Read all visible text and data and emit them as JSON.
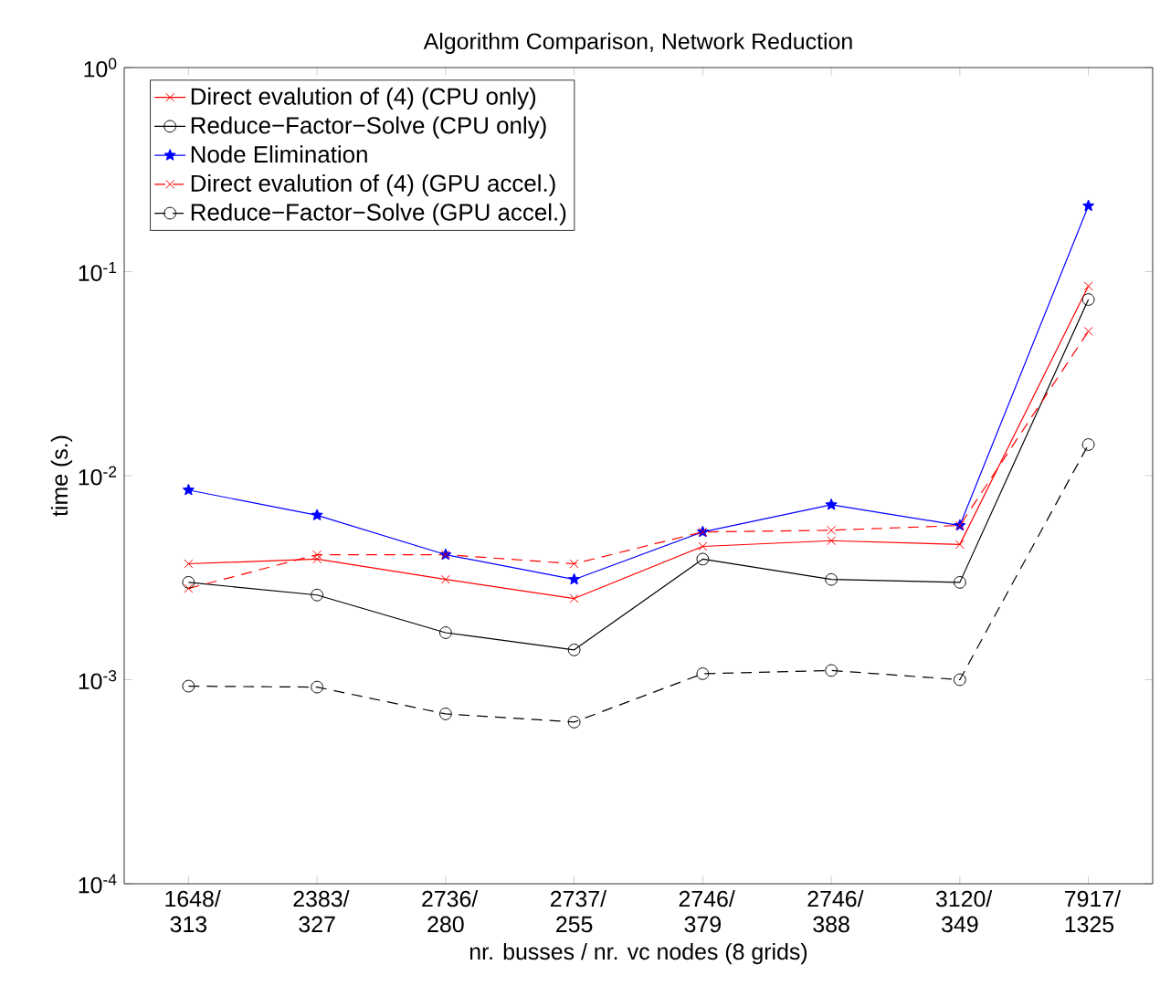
{
  "chart_data": {
    "type": "line",
    "title": "Algorithm Comparison, Network Reduction",
    "xlabel": "nr. busses / nr. vc nodes (8 grids)",
    "ylabel": "time (s.)",
    "categories": [
      "1648/ 313",
      "2383/ 327",
      "2736/ 280",
      "2737/ 255",
      "2746/ 379",
      "2746/ 388",
      "3120/ 349",
      "7917/ 1325"
    ],
    "log": "y",
    "ylim": [
      0.0001,
      1
    ],
    "yticks": [
      {
        "value": 0.0001,
        "label": "10$^{-4}$"
      },
      {
        "value": 0.001,
        "label": "10$^{-3}$"
      },
      {
        "value": 0.01,
        "label": "10$^{-2}$"
      },
      {
        "value": 0.1,
        "label": "10$^{-1}$"
      },
      {
        "value": 1,
        "label": "10$^{0}$"
      }
    ],
    "grid": false,
    "legend": "top left",
    "series": [
      {
        "name": "Direct evalution of (4) (CPU only)",
        "color": "#ff0000",
        "marker": "cross",
        "line_style": "solid",
        "values": [
          0.0037,
          0.0039,
          0.0031,
          0.0025,
          0.0045,
          0.0048,
          0.0046,
          0.085
        ]
      },
      {
        "name": "Reduce−Factor−Solve (CPU only)",
        "color": "#000000",
        "marker": "circle",
        "line_style": "solid",
        "values": [
          0.003,
          0.0026,
          0.0017,
          0.0014,
          0.0039,
          0.0031,
          0.003,
          0.073
        ]
      },
      {
        "name": "Node Elimination",
        "color": "#0000ff",
        "marker": "star",
        "line_style": "solid",
        "values": [
          0.0085,
          0.0064,
          0.0041,
          0.0031,
          0.0053,
          0.0072,
          0.0057,
          0.21
        ]
      },
      {
        "name": "Direct evalution of (4) (GPU accel.)",
        "color": "#ff0000",
        "marker": "cross",
        "line_style": "dashed",
        "values": [
          0.0028,
          0.0041,
          0.0041,
          0.0037,
          0.0053,
          0.0054,
          0.0057,
          0.051
        ]
      },
      {
        "name": "Reduce−Factor−Solve (GPU accel.)",
        "color": "#000000",
        "marker": "circle",
        "line_style": "dashed",
        "values": [
          0.00093,
          0.00092,
          0.00068,
          0.00062,
          0.00107,
          0.00111,
          0.001,
          0.0142
        ]
      }
    ]
  }
}
